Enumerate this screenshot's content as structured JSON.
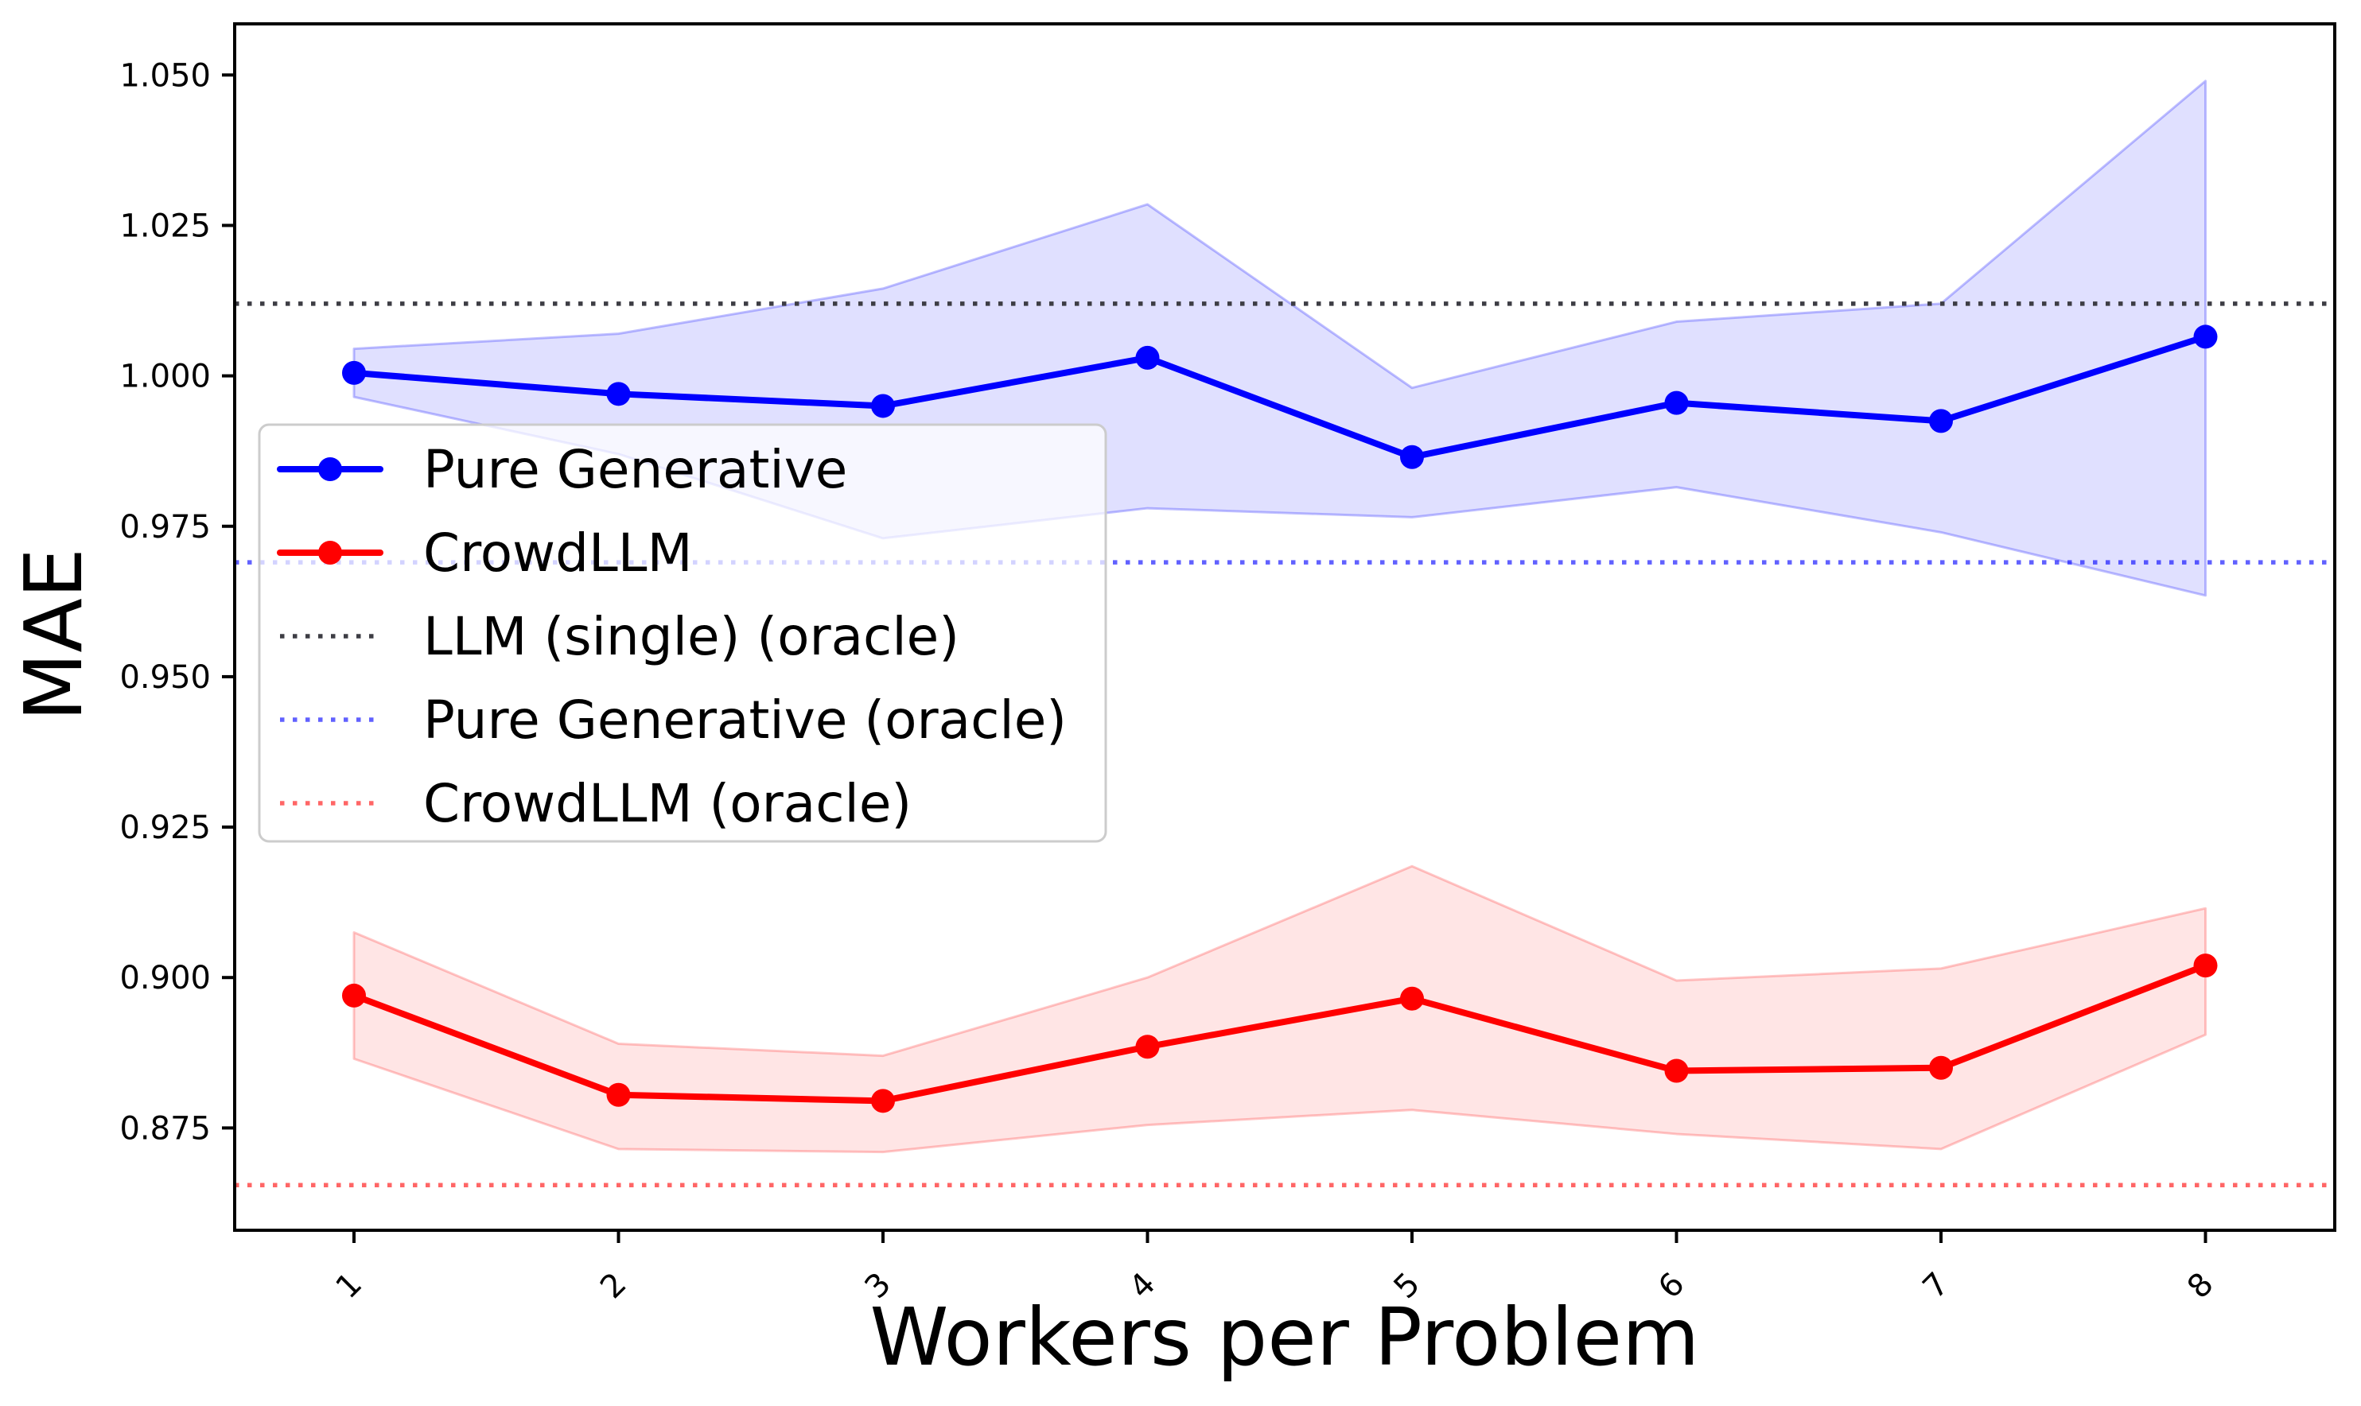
{
  "figure": {
    "background": "#ffffff"
  },
  "chart_data": {
    "type": "line",
    "title": "",
    "xlabel": "Workers per Problem",
    "ylabel": "MAE",
    "x": [
      1,
      2,
      3,
      4,
      5,
      6,
      7,
      8
    ],
    "xtick_labels": [
      "1",
      "2",
      "3",
      "4",
      "5",
      "6",
      "7",
      "8"
    ],
    "yticks": [
      0.875,
      0.9,
      0.925,
      0.95,
      0.975,
      1.0,
      1.025,
      1.05
    ],
    "ytick_labels": [
      "0.875",
      "0.900",
      "0.925",
      "0.950",
      "0.975",
      "1.000",
      "1.025",
      "1.050"
    ],
    "ylim": [
      0.858,
      1.0585
    ],
    "grid": false,
    "legend_position": "center left",
    "series": [
      {
        "name": "Pure Generative",
        "color": "#0000ff",
        "band_fill": "rgba(0,0,255,0.12)",
        "band_edge": "rgba(0,0,255,0.25)",
        "values": [
          1.0005,
          0.997,
          0.995,
          1.003,
          0.9865,
          0.9955,
          0.9925,
          1.0065
        ],
        "band_upper": [
          1.0045,
          1.007,
          1.0145,
          1.0285,
          0.998,
          1.009,
          1.012,
          1.049
        ],
        "band_lower": [
          0.9965,
          0.987,
          0.973,
          0.978,
          0.9765,
          0.9815,
          0.974,
          0.9635
        ]
      },
      {
        "name": "CrowdLLM",
        "color": "#ff0000",
        "band_fill": "rgba(255,0,0,0.10)",
        "band_edge": "rgba(255,0,0,0.22)",
        "values": [
          0.897,
          0.8805,
          0.8795,
          0.8885,
          0.8965,
          0.8845,
          0.885,
          0.902
        ],
        "band_upper": [
          0.9075,
          0.889,
          0.887,
          0.9,
          0.9185,
          0.8995,
          0.9015,
          0.9115
        ],
        "band_lower": [
          0.8865,
          0.8715,
          0.871,
          0.8755,
          0.878,
          0.874,
          0.8715,
          0.8905
        ]
      }
    ],
    "hlines": [
      {
        "name": "LLM (single) (oracle)",
        "value": 1.012,
        "color": "#3d3d44",
        "style": "dotted"
      },
      {
        "name": "Pure Generative (oracle)",
        "value": 0.969,
        "color": "rgba(0,0,255,0.62)",
        "style": "dotted"
      },
      {
        "name": "CrowdLLM (oracle)",
        "value": 0.8655,
        "color": "rgba(255,0,0,0.60)",
        "style": "dotted"
      }
    ],
    "legend": {
      "entries": [
        {
          "label": "Pure Generative",
          "style": "line-marker",
          "color": "#0000ff"
        },
        {
          "label": "CrowdLLM",
          "style": "line-marker",
          "color": "#ff0000"
        },
        {
          "label": "LLM (single) (oracle)",
          "style": "dotted",
          "color": "#3d3d44"
        },
        {
          "label": "Pure Generative (oracle)",
          "style": "dotted",
          "color": "rgba(0,0,255,0.62)"
        },
        {
          "label": "CrowdLLM (oracle)",
          "style": "dotted",
          "color": "rgba(255,0,0,0.60)"
        }
      ]
    }
  }
}
